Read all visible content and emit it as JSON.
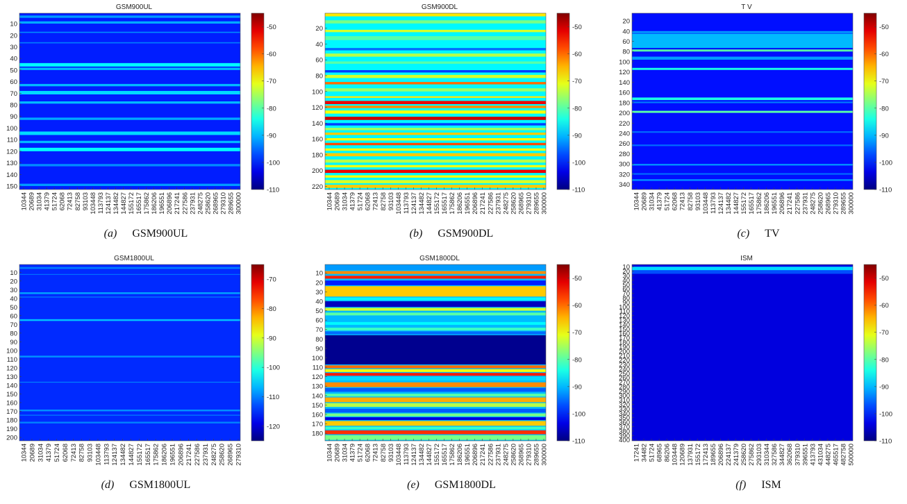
{
  "chart_data": [
    {
      "type": "heatmap",
      "tag": "(a)",
      "caption": "GSM900UL",
      "title": "GSM900UL",
      "yticks": [
        "10",
        "20",
        "30",
        "40",
        "50",
        "60",
        "70",
        "80",
        "90",
        "100",
        "110",
        "120",
        "130",
        "140",
        "150"
      ],
      "ylim": [
        1,
        153
      ],
      "xticks": [
        "10344",
        "20689",
        "31034",
        "41379",
        "51724",
        "62068",
        "72413",
        "82758",
        "93103",
        "103448",
        "113793",
        "124137",
        "134482",
        "144827",
        "155172",
        "165517",
        "175862",
        "186206",
        "196551",
        "206896",
        "217241",
        "227586",
        "237931",
        "248275",
        "258620",
        "268965",
        "279310",
        "289655",
        "300000"
      ],
      "colorbar_ticks": [
        "-50",
        "-60",
        "-70",
        "-80",
        "-90",
        "-100",
        "-110"
      ],
      "clim": [
        -110,
        -45
      ],
      "base_level": -100,
      "bands": [
        {
          "y": 3,
          "h": 2,
          "v": -92
        },
        {
          "y": 8,
          "h": 2,
          "v": -91
        },
        {
          "y": 17,
          "h": 1,
          "v": -93
        },
        {
          "y": 26,
          "h": 1,
          "v": -94
        },
        {
          "y": 44,
          "h": 3,
          "v": -86
        },
        {
          "y": 48,
          "h": 2,
          "v": -90
        },
        {
          "y": 62,
          "h": 2,
          "v": -90
        },
        {
          "y": 68,
          "h": 3,
          "v": -88
        },
        {
          "y": 77,
          "h": 2,
          "v": -90
        },
        {
          "y": 91,
          "h": 2,
          "v": -91
        },
        {
          "y": 103,
          "h": 3,
          "v": -88
        },
        {
          "y": 111,
          "h": 2,
          "v": -90
        },
        {
          "y": 117,
          "h": 3,
          "v": -86
        },
        {
          "y": 131,
          "h": 2,
          "v": -93
        },
        {
          "y": 148,
          "h": 2,
          "v": -92
        }
      ]
    },
    {
      "type": "heatmap",
      "tag": "(b)",
      "caption": "GSM900DL",
      "title": "GSM900DL",
      "yticks": [
        "20",
        "40",
        "60",
        "80",
        "100",
        "120",
        "140",
        "160",
        "180",
        "200",
        "220"
      ],
      "ylim": [
        1,
        224
      ],
      "xticks": [
        "10344",
        "20689",
        "31034",
        "41379",
        "51724",
        "62068",
        "72413",
        "82758",
        "93103",
        "103448",
        "113793",
        "124137",
        "134482",
        "144827",
        "155172",
        "165517",
        "175862",
        "186206",
        "196551",
        "206896",
        "217241",
        "227586",
        "237931",
        "248275",
        "258620",
        "268965",
        "279310",
        "289655",
        "300000"
      ],
      "colorbar_ticks": [
        "-50",
        "-60",
        "-70",
        "-80",
        "-90",
        "-100",
        "-110"
      ],
      "clim": [
        -110,
        -45
      ],
      "base_level": -86,
      "bands": [
        {
          "y": 1,
          "h": 4,
          "v": -68
        },
        {
          "y": 10,
          "h": 4,
          "v": -78
        },
        {
          "y": 22,
          "h": 3,
          "v": -72
        },
        {
          "y": 30,
          "h": 5,
          "v": -80
        },
        {
          "y": 45,
          "h": 3,
          "v": -95
        },
        {
          "y": 52,
          "h": 4,
          "v": -74
        },
        {
          "y": 62,
          "h": 3,
          "v": -80
        },
        {
          "y": 73,
          "h": 3,
          "v": -98
        },
        {
          "y": 79,
          "h": 4,
          "v": -72
        },
        {
          "y": 88,
          "h": 3,
          "v": -60
        },
        {
          "y": 96,
          "h": 4,
          "v": -76
        },
        {
          "y": 106,
          "h": 2,
          "v": -68
        },
        {
          "y": 112,
          "h": 4,
          "v": -52
        },
        {
          "y": 118,
          "h": 3,
          "v": -62
        },
        {
          "y": 124,
          "h": 4,
          "v": -70
        },
        {
          "y": 132,
          "h": 4,
          "v": -50
        },
        {
          "y": 140,
          "h": 3,
          "v": -98
        },
        {
          "y": 146,
          "h": 3,
          "v": -75
        },
        {
          "y": 152,
          "h": 3,
          "v": -66
        },
        {
          "y": 159,
          "h": 3,
          "v": -70
        },
        {
          "y": 165,
          "h": 3,
          "v": -58
        },
        {
          "y": 172,
          "h": 3,
          "v": -70
        },
        {
          "y": 178,
          "h": 4,
          "v": -66
        },
        {
          "y": 186,
          "h": 4,
          "v": -74
        },
        {
          "y": 193,
          "h": 3,
          "v": -70
        },
        {
          "y": 199,
          "h": 4,
          "v": -52
        },
        {
          "y": 206,
          "h": 3,
          "v": -70
        },
        {
          "y": 212,
          "h": 4,
          "v": -72
        },
        {
          "y": 218,
          "h": 4,
          "v": -66
        }
      ]
    },
    {
      "type": "heatmap",
      "tag": "(c)",
      "caption": "TV",
      "title": "T V",
      "yticks": [
        "20",
        "40",
        "60",
        "80",
        "100",
        "120",
        "140",
        "160",
        "180",
        "200",
        "220",
        "240",
        "260",
        "280",
        "300",
        "320",
        "340"
      ],
      "ylim": [
        5,
        350
      ],
      "xticks": [
        "10344",
        "20689",
        "31034",
        "41379",
        "51724",
        "62068",
        "72413",
        "82758",
        "93103",
        "103448",
        "113793",
        "124137",
        "134482",
        "144827",
        "155172",
        "165517",
        "175862",
        "186206",
        "196551",
        "206896",
        "217241",
        "227586",
        "237931",
        "248275",
        "258620",
        "268965",
        "279310",
        "289655",
        "300000"
      ],
      "colorbar_ticks": [
        "-50",
        "-60",
        "-70",
        "-80",
        "-90",
        "-100",
        "-110"
      ],
      "clim": [
        -110,
        -45
      ],
      "base_level": -101,
      "bands": [
        {
          "y": 40,
          "h": 4,
          "v": -92
        },
        {
          "y": 45,
          "h": 28,
          "v": -90
        },
        {
          "y": 76,
          "h": 4,
          "v": -80
        },
        {
          "y": 90,
          "h": 6,
          "v": -92
        },
        {
          "y": 112,
          "h": 4,
          "v": -84
        },
        {
          "y": 170,
          "h": 5,
          "v": -84
        },
        {
          "y": 178,
          "h": 3,
          "v": -94
        },
        {
          "y": 196,
          "h": 4,
          "v": -80
        },
        {
          "y": 236,
          "h": 3,
          "v": -95
        },
        {
          "y": 262,
          "h": 3,
          "v": -95
        },
        {
          "y": 300,
          "h": 3,
          "v": -92
        },
        {
          "y": 318,
          "h": 3,
          "v": -95
        },
        {
          "y": 330,
          "h": 3,
          "v": -92
        }
      ]
    },
    {
      "type": "heatmap",
      "tag": "(d)",
      "caption": "GSM1800UL",
      "title": "GSM1800UL",
      "yticks": [
        "10",
        "20",
        "30",
        "40",
        "50",
        "60",
        "70",
        "80",
        "90",
        "100",
        "110",
        "120",
        "130",
        "140",
        "150",
        "160",
        "170",
        "180",
        "190",
        "200"
      ],
      "ylim": [
        1,
        204
      ],
      "xticks": [
        "10344",
        "20689",
        "31034",
        "41379",
        "51724",
        "62068",
        "72413",
        "82758",
        "93103",
        "103448",
        "113793",
        "124137",
        "134482",
        "144827",
        "155172",
        "165517",
        "175862",
        "186206",
        "196551",
        "206896",
        "217241",
        "227586",
        "237931",
        "248275",
        "258620",
        "268965",
        "279310"
      ],
      "colorbar_ticks": [
        "-70",
        "-80",
        "-90",
        "-100",
        "-110",
        "-120"
      ],
      "clim": [
        -125,
        -65
      ],
      "base_level": -115,
      "bands": [
        {
          "y": 4,
          "h": 2,
          "v": -110
        },
        {
          "y": 12,
          "h": 1,
          "v": -111
        },
        {
          "y": 33,
          "h": 2,
          "v": -108
        },
        {
          "y": 38,
          "h": 1,
          "v": -110
        },
        {
          "y": 64,
          "h": 2,
          "v": -106
        },
        {
          "y": 106,
          "h": 2,
          "v": -109
        },
        {
          "y": 136,
          "h": 1,
          "v": -110
        },
        {
          "y": 168,
          "h": 2,
          "v": -109
        },
        {
          "y": 174,
          "h": 1,
          "v": -110
        },
        {
          "y": 182,
          "h": 2,
          "v": -110
        }
      ]
    },
    {
      "type": "heatmap",
      "tag": "(e)",
      "caption": "GSM1800DL",
      "title": "GSM1800DL",
      "yticks": [
        "10",
        "20",
        "30",
        "40",
        "50",
        "60",
        "70",
        "80",
        "90",
        "100",
        "110",
        "120",
        "130",
        "140",
        "150",
        "160",
        "170",
        "180"
      ],
      "ylim": [
        1,
        188
      ],
      "xticks": [
        "10344",
        "20689",
        "31034",
        "41379",
        "51724",
        "62068",
        "72413",
        "82758",
        "93103",
        "103448",
        "113793",
        "124137",
        "134482",
        "144827",
        "155172",
        "165517",
        "175862",
        "186206",
        "196551",
        "206896",
        "217241",
        "227586",
        "237931",
        "248275",
        "258620",
        "268965",
        "279310",
        "289655",
        "300000"
      ],
      "colorbar_ticks": [
        "-50",
        "-60",
        "-70",
        "-80",
        "-90",
        "-100",
        "-110"
      ],
      "clim": [
        -110,
        -45
      ],
      "base_level": -90,
      "bands": [
        {
          "y": 1,
          "h": 6,
          "v": -92
        },
        {
          "y": 8,
          "h": 3,
          "v": -62
        },
        {
          "y": 13,
          "h": 3,
          "v": -55
        },
        {
          "y": 18,
          "h": 5,
          "v": -100
        },
        {
          "y": 24,
          "h": 11,
          "v": -66
        },
        {
          "y": 36,
          "h": 3,
          "v": -86
        },
        {
          "y": 40,
          "h": 6,
          "v": -106
        },
        {
          "y": 47,
          "h": 3,
          "v": -72
        },
        {
          "y": 52,
          "h": 3,
          "v": -80
        },
        {
          "y": 57,
          "h": 3,
          "v": -90
        },
        {
          "y": 62,
          "h": 3,
          "v": -86
        },
        {
          "y": 68,
          "h": 3,
          "v": -82
        },
        {
          "y": 72,
          "h": 3,
          "v": -95
        },
        {
          "y": 76,
          "h": 31,
          "v": -109
        },
        {
          "y": 108,
          "h": 3,
          "v": -60
        },
        {
          "y": 112,
          "h": 3,
          "v": -70
        },
        {
          "y": 116,
          "h": 3,
          "v": -55
        },
        {
          "y": 120,
          "h": 4,
          "v": -88
        },
        {
          "y": 126,
          "h": 5,
          "v": -62
        },
        {
          "y": 132,
          "h": 4,
          "v": -96
        },
        {
          "y": 138,
          "h": 3,
          "v": -80
        },
        {
          "y": 142,
          "h": 5,
          "v": -64
        },
        {
          "y": 148,
          "h": 4,
          "v": -74
        },
        {
          "y": 154,
          "h": 4,
          "v": -96
        },
        {
          "y": 159,
          "h": 3,
          "v": -78
        },
        {
          "y": 163,
          "h": 3,
          "v": -104
        },
        {
          "y": 167,
          "h": 5,
          "v": -66
        },
        {
          "y": 173,
          "h": 3,
          "v": -82
        },
        {
          "y": 177,
          "h": 4,
          "v": -56
        },
        {
          "y": 182,
          "h": 5,
          "v": -78
        }
      ]
    },
    {
      "type": "heatmap",
      "tag": "(f)",
      "caption": "ISM",
      "title": "ISM",
      "yticks": [
        "10",
        "20",
        "30",
        "40",
        "50",
        "60",
        "70",
        "80",
        "90",
        "100",
        "110",
        "120",
        "130",
        "140",
        "150",
        "160",
        "170",
        "180",
        "190",
        "200",
        "210",
        "220",
        "230",
        "240",
        "250",
        "260",
        "270",
        "280",
        "290",
        "300",
        "310",
        "320",
        "330",
        "340",
        "350",
        "360",
        "370",
        "380",
        "390",
        "400"
      ],
      "ylim": [
        5,
        402
      ],
      "xticks": [
        "17241",
        "34482",
        "51724",
        "68965",
        "86206",
        "103448",
        "120689",
        "137931",
        "155172",
        "172413",
        "189655",
        "206896",
        "224137",
        "241379",
        "258620",
        "275862",
        "293103",
        "310344",
        "327586",
        "344827",
        "362068",
        "379310",
        "396551",
        "413793",
        "431034",
        "448275",
        "465517",
        "482758",
        "500000"
      ],
      "colorbar_ticks": [
        "-50",
        "-60",
        "-70",
        "-80",
        "-90",
        "-100",
        "-110"
      ],
      "clim": [
        -110,
        -45
      ],
      "base_level": -104,
      "bands": [
        {
          "y": 10,
          "h": 8,
          "v": -88
        },
        {
          "y": 18,
          "h": 8,
          "v": -97
        }
      ]
    }
  ]
}
